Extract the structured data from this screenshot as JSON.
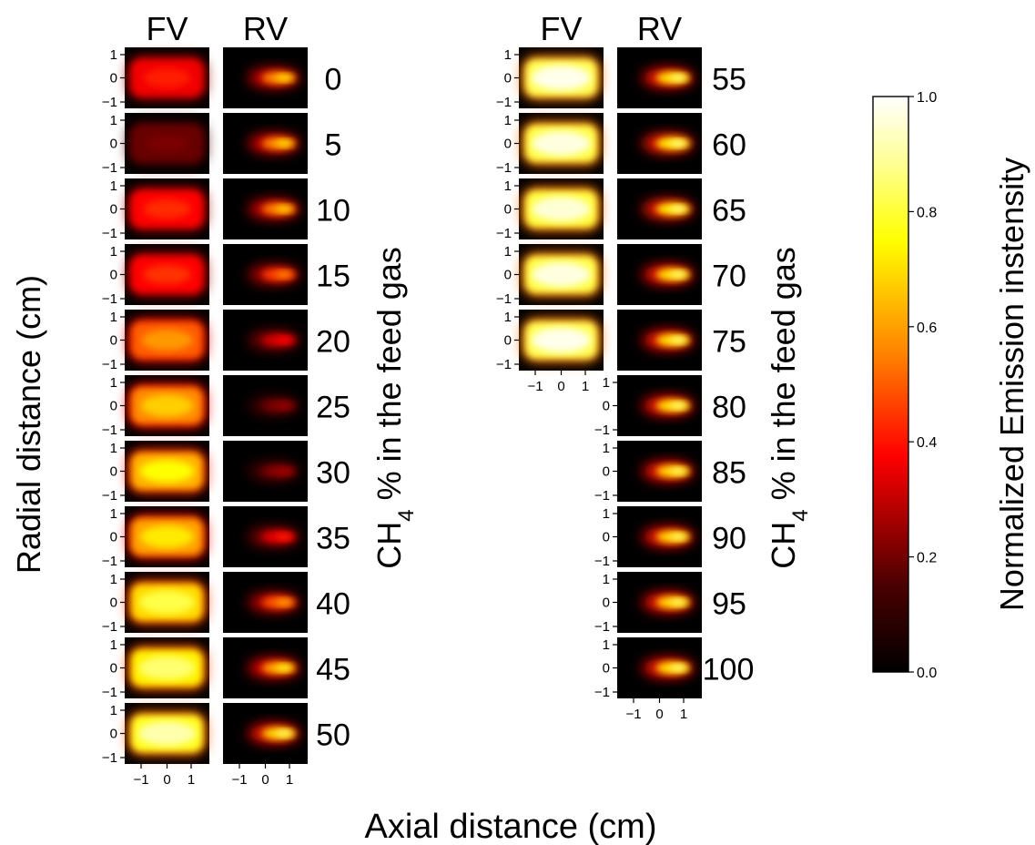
{
  "chart_data": {
    "type": "heatmap",
    "column_headers": [
      "FV",
      "RV"
    ],
    "ylabel": "Radial distance (cm)",
    "xlabel": "Axial distance (cm)",
    "right_label": {
      "main": "CH",
      "sub": "4",
      "rest": " % in the feed gas"
    },
    "radial_ticks": [
      "1",
      "0",
      "−1"
    ],
    "axial_ticks_fv": [
      "−1",
      "0",
      "1"
    ],
    "axial_ticks_rv": [
      "−1",
      "0",
      "1"
    ],
    "ch4_percent": [
      "0",
      "5",
      "10",
      "15",
      "20",
      "25",
      "30",
      "35",
      "40",
      "45",
      "50",
      "55",
      "60",
      "65",
      "70",
      "75",
      "80",
      "85",
      "90",
      "95",
      "100"
    ],
    "fv_peak_intensity": [
      0.42,
      0.18,
      0.44,
      0.45,
      0.6,
      0.68,
      0.75,
      0.72,
      0.82,
      0.86,
      0.92,
      0.98,
      0.97,
      0.96,
      0.97,
      0.98,
      null,
      null,
      null,
      null,
      null
    ],
    "rv_peak_intensity": [
      0.72,
      0.72,
      0.7,
      0.58,
      0.38,
      0.22,
      0.24,
      0.42,
      0.62,
      0.78,
      0.86,
      0.88,
      0.9,
      0.9,
      0.88,
      0.88,
      0.88,
      0.86,
      0.86,
      0.86,
      0.88
    ],
    "colorbar": {
      "label": "Normalized Emission instensity",
      "colormap": "hot",
      "range": [
        0.0,
        1.0
      ],
      "ticks": [
        "0.0",
        "0.2",
        "0.4",
        "0.6",
        "0.8",
        "1.0"
      ]
    }
  }
}
